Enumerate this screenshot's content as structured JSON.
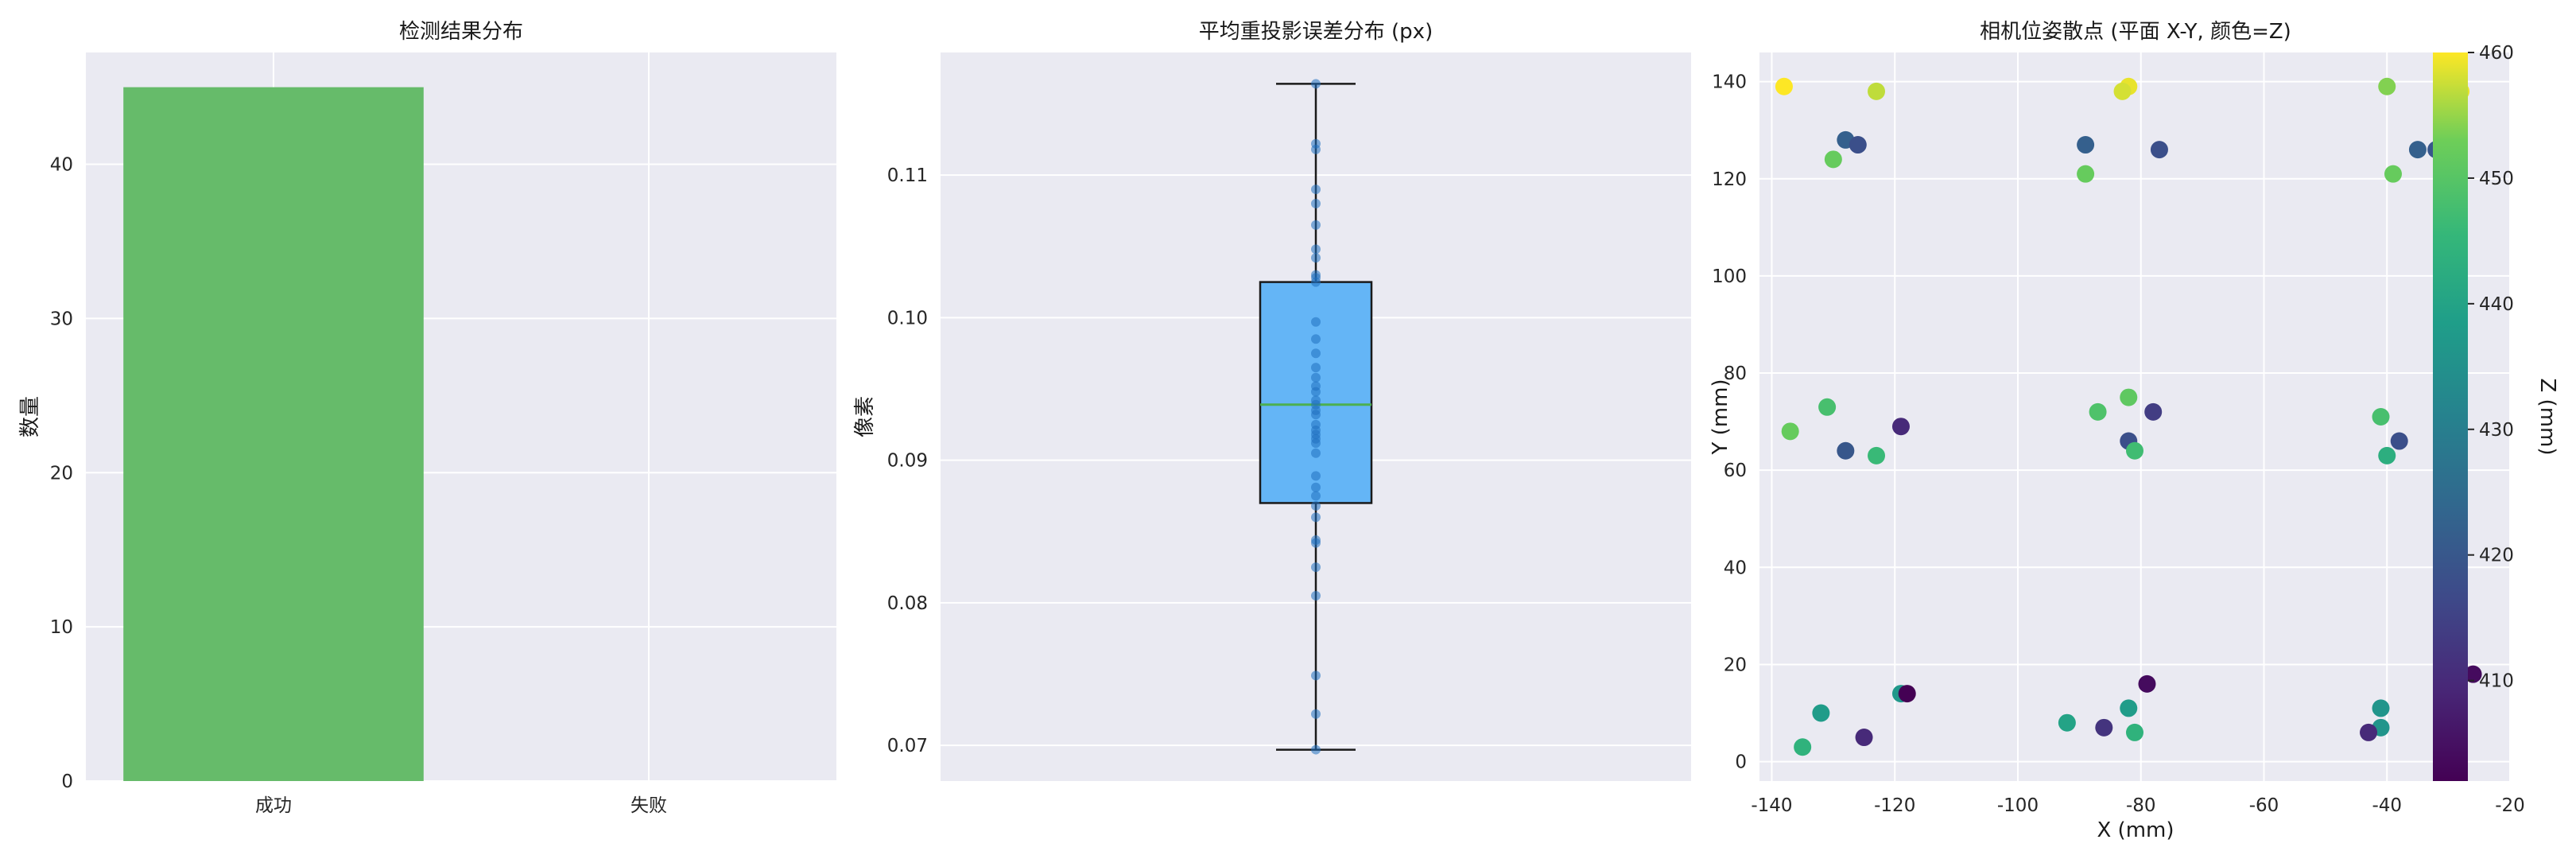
{
  "panels": {
    "bar": {
      "title": "检测结果分布",
      "ylabel": "数量",
      "categories": [
        "成功",
        "失败"
      ],
      "values": [
        45,
        0
      ],
      "ylim": [
        0,
        47.25
      ],
      "yticks": [
        0,
        10,
        20,
        30,
        40
      ],
      "bar_color": "#66bb6a"
    },
    "box": {
      "title": "平均重投影误差分布 (px)",
      "ylabel": "像素",
      "ylim": [
        0.0675,
        0.1186
      ],
      "yticks": [
        0.07,
        0.08,
        0.09,
        0.1,
        0.11
      ],
      "ytick_labels": [
        "0.07",
        "0.08",
        "0.09",
        "0.10",
        "0.11"
      ],
      "box_color": "#64b5f6",
      "median_color": "#4caf50"
    },
    "scatter": {
      "title": "相机位姿散点 (平面 X-Y, 颜色=Z)",
      "xlabel": "X (mm)",
      "ylabel": "Y (mm)",
      "colorbar_label": "Z (mm)",
      "xlim": [
        -142,
        -20
      ],
      "ylim": [
        -4,
        146
      ],
      "xticks": [
        -140,
        -120,
        -100,
        -80,
        -60,
        -40,
        -20
      ],
      "yticks": [
        0,
        20,
        40,
        60,
        80,
        100,
        120,
        140
      ],
      "zlim": [
        402,
        460
      ],
      "zticks": [
        410,
        420,
        430,
        440,
        450,
        460
      ]
    }
  },
  "chart_data": [
    {
      "type": "bar",
      "title": "检测结果分布",
      "ylabel": "数量",
      "categories": [
        "成功",
        "失败"
      ],
      "values": [
        45,
        0
      ]
    },
    {
      "type": "box",
      "title": "平均重投影误差分布 (px)",
      "ylabel": "像素",
      "stats": {
        "min": 0.0697,
        "q1": 0.087,
        "median": 0.0939,
        "q3": 0.1025,
        "max": 0.1164
      },
      "points": [
        0.0697,
        0.0722,
        0.0749,
        0.0805,
        0.0825,
        0.0842,
        0.0844,
        0.086,
        0.0868,
        0.0875,
        0.0881,
        0.0889,
        0.0905,
        0.0912,
        0.0915,
        0.0918,
        0.0921,
        0.0925,
        0.0932,
        0.0935,
        0.0939,
        0.0942,
        0.0948,
        0.0952,
        0.0958,
        0.0965,
        0.0975,
        0.0985,
        0.0997,
        0.1025,
        0.1028,
        0.103,
        0.1042,
        0.1048,
        0.1065,
        0.108,
        0.109,
        0.1118,
        0.1122,
        0.1164
      ]
    },
    {
      "type": "scatter",
      "title": "相机位姿散点 (平面 X-Y, 颜色=Z)",
      "xlabel": "X (mm)",
      "ylabel": "Y (mm)",
      "colorbar_label": "Z (mm)",
      "points": [
        {
          "x": -138,
          "y": 139,
          "z": 460
        },
        {
          "x": -123,
          "y": 138,
          "z": 457
        },
        {
          "x": -82,
          "y": 139,
          "z": 459
        },
        {
          "x": -83,
          "y": 138,
          "z": 458
        },
        {
          "x": -40,
          "y": 139,
          "z": 454
        },
        {
          "x": -28,
          "y": 138,
          "z": 459
        },
        {
          "x": -128,
          "y": 128,
          "z": 422
        },
        {
          "x": -126,
          "y": 127,
          "z": 418
        },
        {
          "x": -130,
          "y": 124,
          "z": 452
        },
        {
          "x": -89,
          "y": 127,
          "z": 422
        },
        {
          "x": -89,
          "y": 121,
          "z": 452
        },
        {
          "x": -77,
          "y": 126,
          "z": 418
        },
        {
          "x": -32,
          "y": 126,
          "z": 420
        },
        {
          "x": -35,
          "y": 126,
          "z": 422
        },
        {
          "x": -39,
          "y": 121,
          "z": 452
        },
        {
          "x": -137,
          "y": 68,
          "z": 452
        },
        {
          "x": -131,
          "y": 73,
          "z": 448
        },
        {
          "x": -128,
          "y": 64,
          "z": 420
        },
        {
          "x": -123,
          "y": 63,
          "z": 446
        },
        {
          "x": -119,
          "y": 69,
          "z": 410
        },
        {
          "x": -87,
          "y": 72,
          "z": 449
        },
        {
          "x": -82,
          "y": 75,
          "z": 451
        },
        {
          "x": -78,
          "y": 72,
          "z": 414
        },
        {
          "x": -82,
          "y": 66,
          "z": 418
        },
        {
          "x": -81,
          "y": 64,
          "z": 447
        },
        {
          "x": -41,
          "y": 71,
          "z": 448
        },
        {
          "x": -31,
          "y": 80,
          "z": 454
        },
        {
          "x": -29,
          "y": 77,
          "z": 412
        },
        {
          "x": -38,
          "y": 66,
          "z": 418
        },
        {
          "x": -40,
          "y": 63,
          "z": 443
        },
        {
          "x": -119,
          "y": 14,
          "z": 437
        },
        {
          "x": -118,
          "y": 14,
          "z": 402
        },
        {
          "x": -132,
          "y": 10,
          "z": 438
        },
        {
          "x": -135,
          "y": 3,
          "z": 444
        },
        {
          "x": -125,
          "y": 5,
          "z": 410
        },
        {
          "x": -92,
          "y": 8,
          "z": 440
        },
        {
          "x": -82,
          "y": 11,
          "z": 438
        },
        {
          "x": -79,
          "y": 16,
          "z": 404
        },
        {
          "x": -86,
          "y": 7,
          "z": 412
        },
        {
          "x": -81,
          "y": 6,
          "z": 444
        },
        {
          "x": -41,
          "y": 11,
          "z": 436
        },
        {
          "x": -26,
          "y": 18,
          "z": 404
        },
        {
          "x": -41,
          "y": 7,
          "z": 436
        },
        {
          "x": -31,
          "y": 7,
          "z": 442
        },
        {
          "x": -43,
          "y": 6,
          "z": 410
        }
      ]
    }
  ]
}
